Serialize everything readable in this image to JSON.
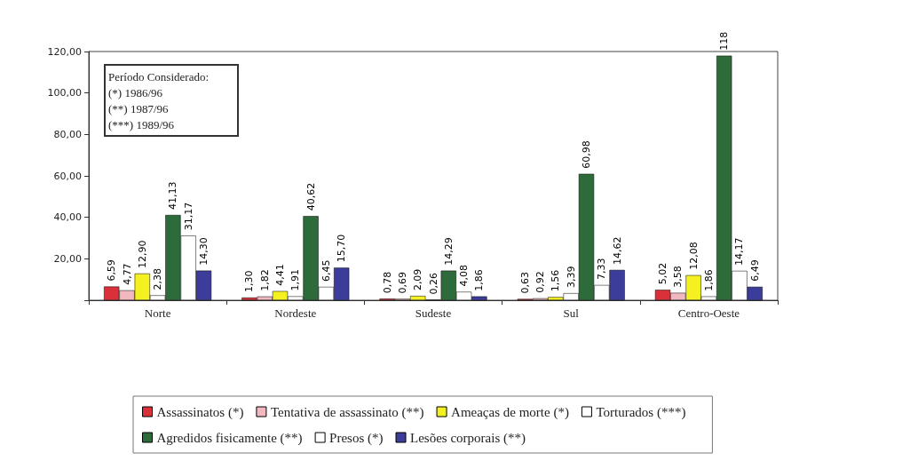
{
  "chart_data": {
    "type": "bar",
    "categories": [
      "Norte",
      "Nordeste",
      "Sudeste",
      "Sul",
      "Centro-Oeste"
    ],
    "series": [
      {
        "name": "Assassinatos (*)",
        "color": "#d9303a",
        "values": [
          6.59,
          1.3,
          0.78,
          0.63,
          5.02
        ],
        "value_labels": [
          "6,59",
          "1,30",
          "0,78",
          "0,63",
          "5,02"
        ]
      },
      {
        "name": "Tentativa de assassinato (**)",
        "color": "#f2b8c0",
        "values": [
          4.77,
          1.82,
          0.69,
          0.92,
          3.58
        ],
        "value_labels": [
          "4,77",
          "1,82",
          "0,69",
          "0,92",
          "3,58"
        ]
      },
      {
        "name": "Ameaças de morte (*)",
        "color": "#f5f020",
        "values": [
          12.9,
          4.41,
          2.09,
          1.56,
          12.08
        ],
        "value_labels": [
          "12,90",
          "4,41",
          "2,09",
          "1,56",
          "12,08"
        ]
      },
      {
        "name": "Torturados (***)",
        "color": "#ffffff",
        "values": [
          2.38,
          1.91,
          0.26,
          3.39,
          1.86
        ],
        "value_labels": [
          "2,38",
          "1,91",
          "0,26",
          "3,39",
          "1,86"
        ]
      },
      {
        "name": "Agredidos fisicamente (**)",
        "color": "#2e6b3a",
        "values": [
          41.13,
          40.62,
          14.29,
          60.98,
          118
        ],
        "value_labels": [
          "41,13",
          "40,62",
          "14,29",
          "60,98",
          "118"
        ]
      },
      {
        "name": "Presos (*)",
        "color": "#ffffff",
        "values": [
          31.17,
          6.45,
          4.08,
          7.33,
          14.17
        ],
        "value_labels": [
          "31,17",
          "6,45",
          "4,08",
          "7,33",
          "14,17"
        ]
      },
      {
        "name": "Lesões corporais (**)",
        "color": "#3c3c9a",
        "values": [
          14.3,
          15.7,
          1.86,
          14.62,
          6.49
        ],
        "value_labels": [
          "14,30",
          "15,70",
          "1,86",
          "14,62",
          "6,49"
        ]
      }
    ],
    "ylim": [
      0,
      120
    ],
    "yticks": [
      {
        "value": 0,
        "label": null
      },
      {
        "value": 20,
        "label": "20,00"
      },
      {
        "value": 40,
        "label": "40,00"
      },
      {
        "value": 60,
        "label": "60,00"
      },
      {
        "value": 80,
        "label": "80,00"
      },
      {
        "value": 100,
        "label": "100,00"
      },
      {
        "value": 120,
        "label": "120,00"
      }
    ],
    "annotations": [
      "Período Considerado:",
      "(*) 1986/96",
      "(**) 1987/96",
      "(***) 1989/96"
    ],
    "grid": false,
    "legend": "bottom"
  }
}
